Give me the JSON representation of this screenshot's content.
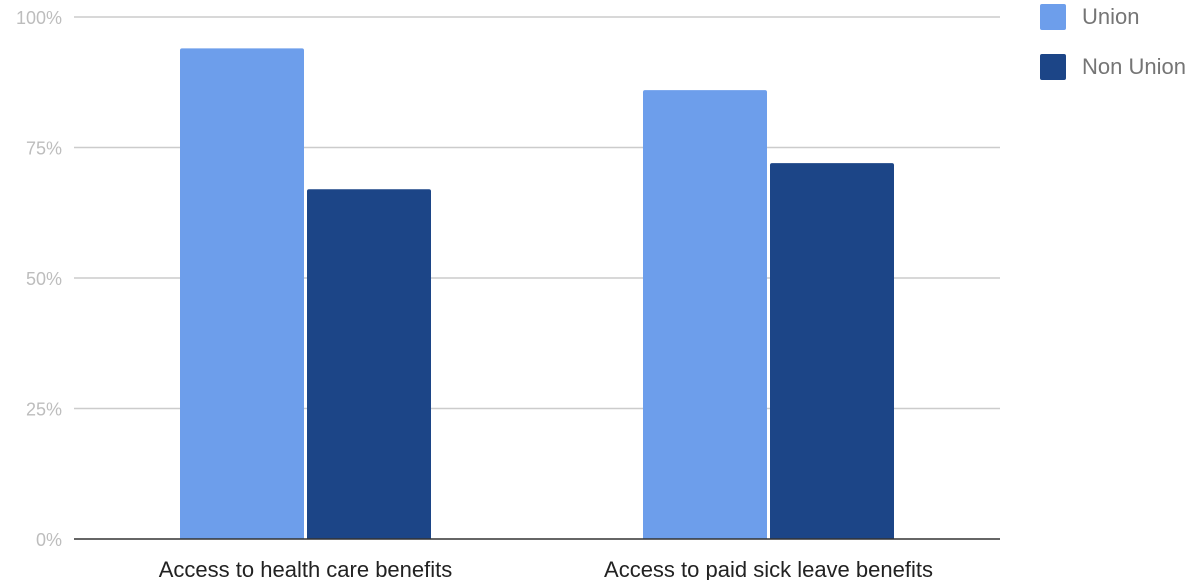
{
  "chart_data": {
    "type": "bar",
    "categories": [
      "Access to health care benefits",
      "Access to paid sick leave benefits"
    ],
    "series": [
      {
        "name": "Union",
        "values": [
          94,
          86
        ],
        "color": "#6d9eeb"
      },
      {
        "name": "Non Union",
        "values": [
          67,
          72
        ],
        "color": "#1c4587"
      }
    ],
    "ylim": [
      0,
      100
    ],
    "yticks": [
      0,
      25,
      50,
      75,
      100
    ],
    "ytick_labels": [
      "0%",
      "25%",
      "50%",
      "75%",
      "100%"
    ],
    "grid": true,
    "legend_position": "top-right"
  }
}
